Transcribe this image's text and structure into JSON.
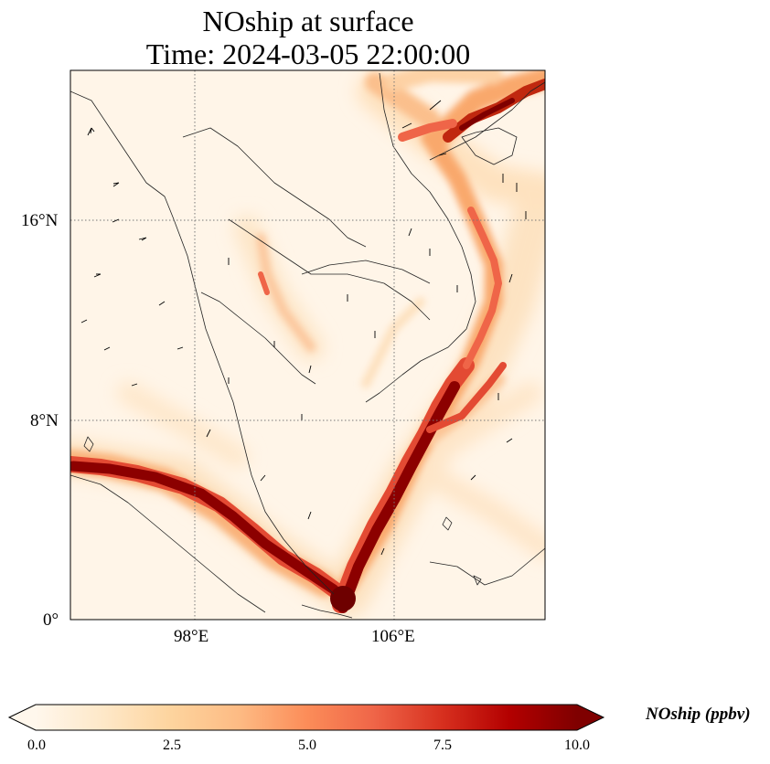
{
  "title": {
    "line1": "NOship at surface",
    "line2": "Time: 2024-03-05 22:00:00"
  },
  "map": {
    "lon_range_deg": [
      93,
      112
    ],
    "lat_range_deg": [
      0,
      22
    ],
    "lon_ticks": [
      {
        "value": 98,
        "label": "98°E"
      },
      {
        "value": 106,
        "label": "106°E"
      }
    ],
    "lat_ticks": [
      {
        "value": 0,
        "label": "0°"
      },
      {
        "value": 8,
        "label": "8°N"
      },
      {
        "value": 16,
        "label": "16°N"
      }
    ],
    "gridlines": "dotted"
  },
  "colorbar": {
    "variable": "NOship",
    "label": "NOship (ppbv)",
    "min": 0.0,
    "max": 10.0,
    "extend": "both",
    "ticks": [
      {
        "value": 0.0,
        "label": "0.0"
      },
      {
        "value": 2.5,
        "label": "2.5"
      },
      {
        "value": 5.0,
        "label": "5.0"
      },
      {
        "value": 7.5,
        "label": "7.5"
      },
      {
        "value": 10.0,
        "label": "10.0"
      }
    ],
    "colormap": [
      "#fff7ec",
      "#fee8c8",
      "#fdd49e",
      "#fdbb84",
      "#fc8d59",
      "#ef6548",
      "#d7301f",
      "#b30000",
      "#7f0000"
    ]
  }
}
